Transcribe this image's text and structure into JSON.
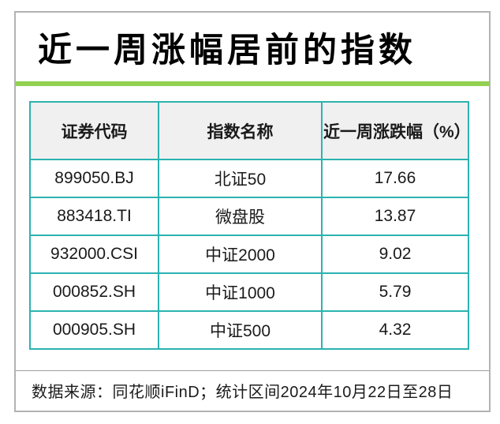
{
  "title": {
    "text": "近一周涨幅居前的指数"
  },
  "colors": {
    "accent_green_bar": "#92d050",
    "table_border_teal": "#2bb3b1",
    "header_background": "#f0f0f0",
    "card_border_gray": "#b3b3b3",
    "text_black": "#1a1a1a"
  },
  "table": {
    "headers": [
      "证券代码",
      "指数名称",
      "近一周涨跌幅（%）"
    ],
    "rows": [
      {
        "code": "899050.BJ",
        "name": "北证50",
        "change": "17.66"
      },
      {
        "code": "883418.TI",
        "name": "微盘股",
        "change": "13.87"
      },
      {
        "code": "932000.CSI",
        "name": "中证2000",
        "change": "9.02"
      },
      {
        "code": "000852.SH",
        "name": "中证1000",
        "change": "5.79"
      },
      {
        "code": "000905.SH",
        "name": "中证500",
        "change": "4.32"
      }
    ]
  },
  "footer": {
    "text": "数据来源：同花顺iFinD；统计区间2024年10月22日至28日"
  },
  "chart_data": {
    "type": "table",
    "title": "近一周涨幅居前的指数",
    "columns": [
      "证券代码",
      "指数名称",
      "近一周涨跌幅（%）"
    ],
    "rows": [
      [
        "899050.BJ",
        "北证50",
        17.66
      ],
      [
        "883418.TI",
        "微盘股",
        13.87
      ],
      [
        "932000.CSI",
        "中证2000",
        9.02
      ],
      [
        "000852.SH",
        "中证1000",
        5.79
      ],
      [
        "000905.SH",
        "中证500",
        4.32
      ]
    ],
    "note": "数据来源：同花顺iFinD；统计区间2024年10月22日至28日"
  }
}
